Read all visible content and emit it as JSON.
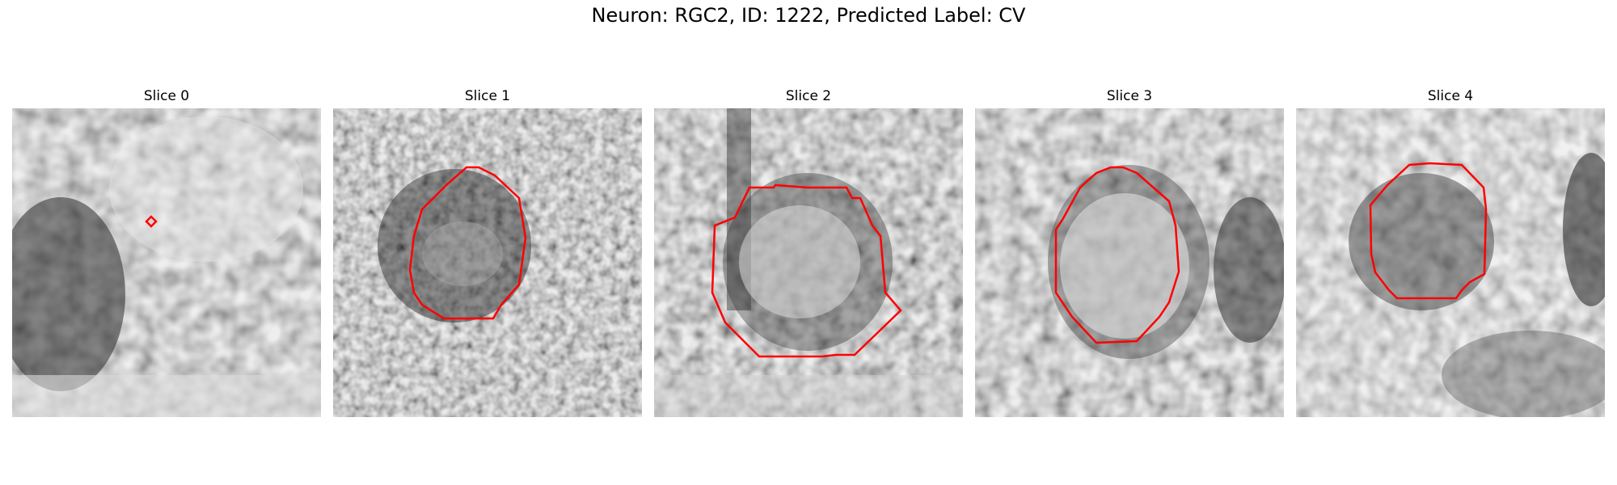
{
  "figure": {
    "title": "Neuron: RGC2, ID: 1222, Predicted Label: CV"
  },
  "panels": [
    {
      "title": "Slice 0",
      "roi": "tiny red diamond marker"
    },
    {
      "title": "Slice 1",
      "roi": "red octagonal contour around dark ring"
    },
    {
      "title": "Slice 2",
      "roi": "red contour around bright soma"
    },
    {
      "title": "Slice 3",
      "roi": "red octagonal contour around bright soma"
    },
    {
      "title": "Slice 4",
      "roi": "red octagonal contour around dark soma"
    }
  ],
  "colors": {
    "contour": "#ff0000",
    "background": "#ffffff"
  }
}
